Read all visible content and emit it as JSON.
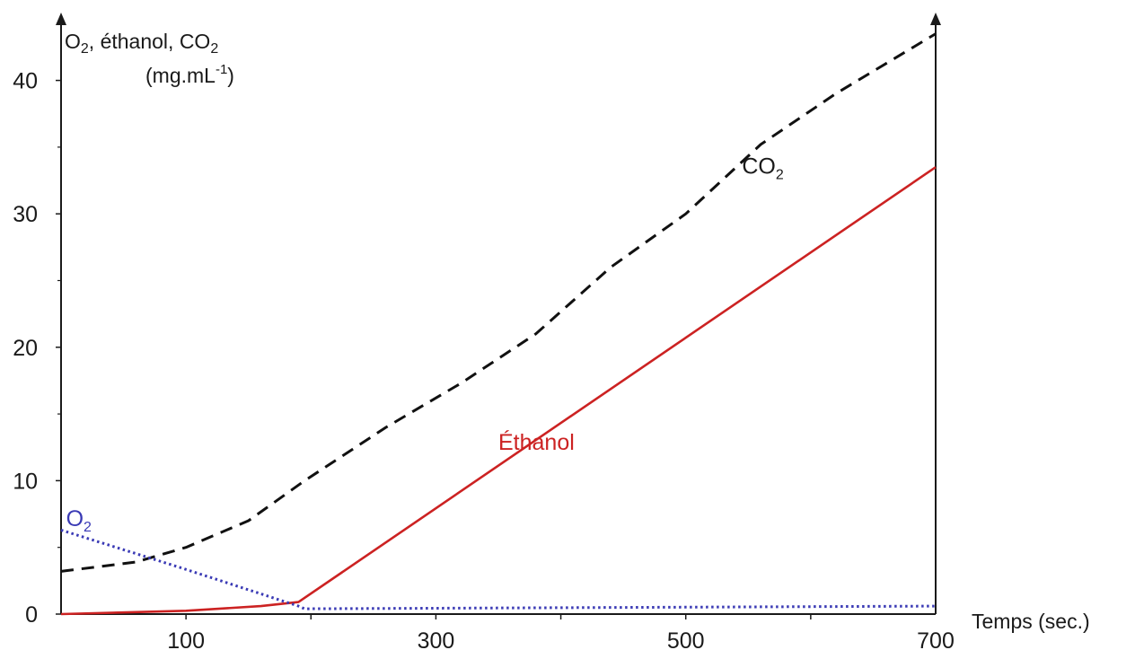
{
  "chart_data": {
    "type": "line",
    "title": "",
    "xlabel": "Temps (sec.)",
    "ylabel": {
      "line1_prefix": "O",
      "line1_sub1": "2",
      "line1_middle": ", éthanol, CO",
      "line1_sub2": "2",
      "line2_prefix": "(mg.mL",
      "line2_sup": "-1",
      "line2_suffix": ")"
    },
    "xlim": [
      0,
      700
    ],
    "ylim": [
      0,
      43
    ],
    "x_ticks": [
      100,
      300,
      500,
      700
    ],
    "y_ticks": [
      0,
      10,
      20,
      30,
      40
    ],
    "grid": false,
    "series": [
      {
        "name": "CO2",
        "label_main": "CO",
        "label_sub": "2",
        "color": "#111111",
        "style": "dashed",
        "label_at": [
          545,
          33
        ],
        "points": [
          [
            0,
            3.2
          ],
          [
            60,
            3.9
          ],
          [
            100,
            5.0
          ],
          [
            150,
            7.0
          ],
          [
            195,
            10.0
          ],
          [
            260,
            14.0
          ],
          [
            320,
            17.3
          ],
          [
            380,
            21.0
          ],
          [
            440,
            26.0
          ],
          [
            500,
            30.0
          ],
          [
            560,
            35.2
          ],
          [
            620,
            39.0
          ],
          [
            700,
            43.5
          ]
        ]
      },
      {
        "name": "Éthanol",
        "label_main": "Éthanol",
        "label_sub": "",
        "color": "#cc2222",
        "style": "solid",
        "label_at": [
          350,
          12.3
        ],
        "points": [
          [
            0,
            0.0
          ],
          [
            100,
            0.25
          ],
          [
            160,
            0.6
          ],
          [
            190,
            0.9
          ],
          [
            700,
            33.5
          ]
        ]
      },
      {
        "name": "O2",
        "label_main": "O",
        "label_sub": "2",
        "color": "#3a3ab5",
        "style": "dotted",
        "label_at": [
          4,
          6.6
        ],
        "points": [
          [
            0,
            6.3
          ],
          [
            95,
            3.5
          ],
          [
            190,
            0.6
          ],
          [
            195,
            0.4
          ],
          [
            700,
            0.6
          ]
        ]
      }
    ]
  }
}
